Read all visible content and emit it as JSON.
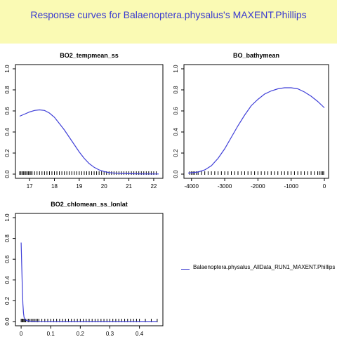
{
  "header": {
    "title": "Response curves for Balaenoptera.physalus's MAXENT.Phillips"
  },
  "colors": {
    "header_bg": "#fafab4",
    "title_text": "#3a3ad0",
    "curve": "#4040d8",
    "rug": "#000000"
  },
  "legend": {
    "label": "Balaenoptera.physalus_AllData_RUN1_MAXENT.Phillips"
  },
  "chart_data": [
    {
      "type": "line",
      "title": "BO2_tempmean_ss",
      "xlabel": "",
      "ylabel": "",
      "xlim": [
        16.6,
        22.2
      ],
      "ylim": [
        0,
        1
      ],
      "xticks": [
        17,
        18,
        19,
        20,
        21,
        22
      ],
      "yticks": [
        0.0,
        0.2,
        0.4,
        0.6,
        0.8,
        1.0
      ],
      "series": [
        {
          "x": [
            16.6,
            16.8,
            17.0,
            17.2,
            17.4,
            17.6,
            17.8,
            18.0,
            18.2,
            18.4,
            18.6,
            18.8,
            19.0,
            19.2,
            19.4,
            19.6,
            19.8,
            20.0,
            20.2,
            20.5,
            21.0,
            21.5,
            22.2
          ],
          "y": [
            0.55,
            0.57,
            0.59,
            0.605,
            0.61,
            0.605,
            0.58,
            0.54,
            0.48,
            0.42,
            0.35,
            0.28,
            0.21,
            0.15,
            0.1,
            0.065,
            0.04,
            0.025,
            0.015,
            0.008,
            0.004,
            0.002,
            0.001
          ]
        }
      ],
      "rug": [
        16.6,
        16.65,
        16.7,
        16.75,
        16.8,
        16.85,
        16.9,
        16.95,
        17.0,
        17.05,
        17.1,
        17.2,
        17.3,
        17.4,
        17.5,
        17.6,
        17.7,
        17.8,
        17.9,
        18.0,
        18.1,
        18.2,
        18.3,
        18.4,
        18.5,
        18.6,
        18.7,
        18.8,
        18.9,
        19.0,
        19.1,
        19.2,
        19.3,
        19.4,
        19.5,
        19.6,
        19.7,
        19.8,
        19.9,
        20.0,
        20.1,
        20.2,
        20.3,
        20.4,
        20.5,
        20.6,
        20.7,
        20.8,
        20.9,
        21.0,
        21.1,
        21.2,
        21.3,
        21.4,
        21.5,
        21.6,
        21.7,
        21.8,
        21.9,
        22.0,
        22.1
      ]
    },
    {
      "type": "line",
      "title": "BO_bathymean",
      "xlabel": "",
      "ylabel": "",
      "xlim": [
        -4100,
        0
      ],
      "ylim": [
        0,
        1
      ],
      "xticks": [
        -4000,
        -3000,
        -2000,
        -1000,
        0
      ],
      "yticks": [
        0.0,
        0.2,
        0.4,
        0.6,
        0.8,
        1.0
      ],
      "series": [
        {
          "x": [
            -4100,
            -3800,
            -3600,
            -3400,
            -3200,
            -3000,
            -2800,
            -2600,
            -2400,
            -2200,
            -2000,
            -1800,
            -1600,
            -1400,
            -1200,
            -1000,
            -800,
            -600,
            -400,
            -200,
            0
          ],
          "y": [
            0.01,
            0.02,
            0.04,
            0.08,
            0.15,
            0.24,
            0.35,
            0.46,
            0.56,
            0.65,
            0.71,
            0.76,
            0.79,
            0.81,
            0.82,
            0.82,
            0.81,
            0.78,
            0.74,
            0.69,
            0.63
          ]
        }
      ],
      "rug": [
        -4050,
        -4000,
        -3950,
        -3900,
        -3850,
        -3800,
        -3700,
        -3600,
        -3500,
        -3400,
        -3300,
        -3200,
        -3100,
        -3000,
        -2900,
        -2800,
        -2700,
        -2600,
        -2500,
        -2400,
        -2300,
        -2200,
        -2100,
        -2000,
        -1900,
        -1800,
        -1700,
        -1600,
        -1500,
        -1400,
        -1300,
        -1200,
        -1100,
        -1000,
        -900,
        -800,
        -700,
        -600,
        -500,
        -400,
        -300,
        -200,
        -150,
        -100,
        -50,
        -20
      ]
    },
    {
      "type": "line",
      "title": "BO2_chlomean_ss_lonlat",
      "xlabel": "",
      "ylabel": "",
      "xlim": [
        -0.005,
        0.465
      ],
      "ylim": [
        0,
        1
      ],
      "xticks": [
        0.0,
        0.1,
        0.2,
        0.3,
        0.4
      ],
      "yticks": [
        0.0,
        0.2,
        0.4,
        0.6,
        0.8,
        1.0
      ],
      "series": [
        {
          "x": [
            0.0,
            0.002,
            0.004,
            0.006,
            0.008,
            0.01,
            0.015,
            0.02,
            0.03,
            0.05,
            0.1,
            0.2,
            0.3,
            0.4,
            0.46
          ],
          "y": [
            0.76,
            0.55,
            0.33,
            0.17,
            0.08,
            0.04,
            0.015,
            0.008,
            0.004,
            0.002,
            0.001,
            0.001,
            0.001,
            0.001,
            0.001
          ]
        }
      ],
      "rug": [
        0.0,
        0.003,
        0.006,
        0.009,
        0.012,
        0.015,
        0.02,
        0.025,
        0.03,
        0.035,
        0.04,
        0.045,
        0.05,
        0.055,
        0.06,
        0.07,
        0.08,
        0.09,
        0.1,
        0.11,
        0.12,
        0.13,
        0.14,
        0.15,
        0.16,
        0.17,
        0.18,
        0.19,
        0.2,
        0.21,
        0.22,
        0.23,
        0.24,
        0.25,
        0.26,
        0.27,
        0.28,
        0.29,
        0.3,
        0.31,
        0.32,
        0.33,
        0.34,
        0.35,
        0.36,
        0.37,
        0.38,
        0.39,
        0.4,
        0.42,
        0.44,
        0.46
      ]
    }
  ]
}
